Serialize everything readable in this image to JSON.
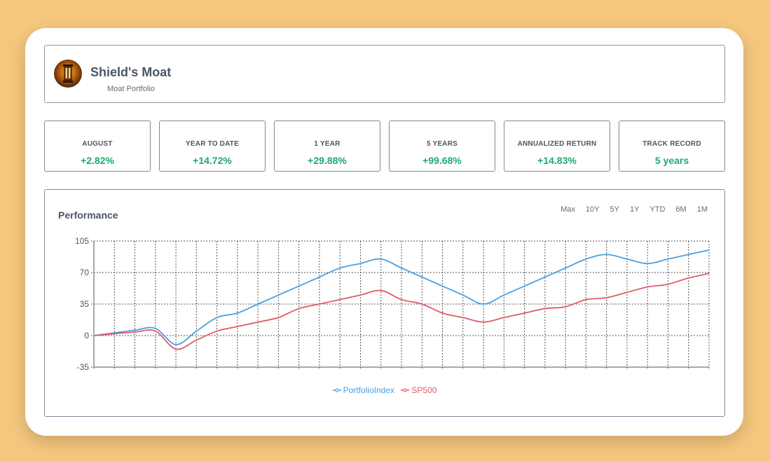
{
  "header": {
    "title": "Shield's Moat",
    "subtitle": "Moat Portfolio",
    "avatar_icon": "lantern-icon"
  },
  "stats": [
    {
      "label": "AUGUST",
      "value": "+2.82%"
    },
    {
      "label": "YEAR TO DATE",
      "value": "+14.72%"
    },
    {
      "label": "1 YEAR",
      "value": "+29.88%"
    },
    {
      "label": "5 YEARS",
      "value": "+99.68%"
    },
    {
      "label": "ANNUALIZED RETURN",
      "value": "+14.83%"
    },
    {
      "label": "TRACK RECORD",
      "value": "5 years"
    }
  ],
  "performance": {
    "title": "Performance",
    "ranges": [
      "Max",
      "10Y",
      "5Y",
      "1Y",
      "YTD",
      "6M",
      "1M"
    ]
  },
  "colors": {
    "background": "#f5c77e",
    "positive": "#20a870",
    "portfolio": "#4a9fe0",
    "sp500": "#e05a6a"
  },
  "chart_data": {
    "type": "line",
    "ylim": [
      -35,
      105
    ],
    "yticks": [
      -35,
      0,
      35,
      70,
      105
    ],
    "grid": true,
    "legend_position": "bottom",
    "series": [
      {
        "name": "PortfolioIndex",
        "values": [
          0,
          3,
          6,
          8,
          -10,
          5,
          20,
          25,
          35,
          45,
          55,
          65,
          75,
          80,
          85,
          75,
          65,
          55,
          45,
          35,
          45,
          55,
          65,
          75,
          85,
          90,
          85,
          80,
          85,
          90,
          95
        ]
      },
      {
        "name": "SP500",
        "values": [
          0,
          2,
          4,
          5,
          -15,
          -5,
          5,
          10,
          15,
          20,
          30,
          35,
          40,
          45,
          50,
          40,
          35,
          25,
          20,
          15,
          20,
          25,
          30,
          32,
          40,
          42,
          48,
          54,
          57,
          64,
          69
        ]
      }
    ]
  }
}
